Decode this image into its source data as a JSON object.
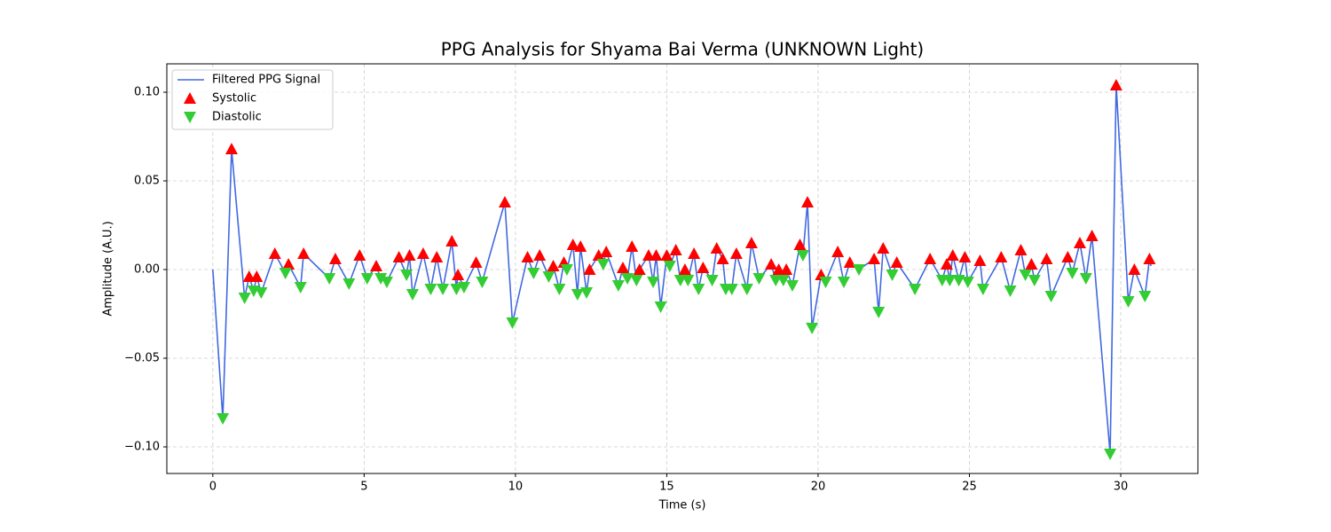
{
  "chart_data": {
    "type": "line",
    "title": "PPG Analysis for Shyama Bai Verma (UNKNOWN Light)",
    "x_label": "Time (s)",
    "y_label": "Amplitude (A.U.)",
    "xlim": [
      -1.52,
      32.55
    ],
    "ylim": [
      -0.115,
      0.116
    ],
    "xticks": [
      0,
      5,
      10,
      15,
      20,
      25,
      30
    ],
    "yticks": [
      {
        "value": -0.1,
        "label": "−0.10"
      },
      {
        "value": -0.05,
        "label": "−0.05"
      },
      {
        "value": 0,
        "label": "0.00"
      },
      {
        "value": 0.05,
        "label": "0.05"
      },
      {
        "value": 0.1,
        "label": "0.10"
      }
    ],
    "grid": true,
    "legend": "upper left",
    "series": [
      {
        "name": "Filtered PPG Signal",
        "type": "line",
        "color": "#4169e1",
        "x": [
          0,
          0.33,
          0.62,
          1.05,
          1.2,
          1.35,
          1.45,
          1.6,
          2.05,
          2.4,
          2.5,
          2.9,
          3.0,
          3.85,
          4.05,
          4.5,
          4.85,
          5.1,
          5.4,
          5.55,
          5.75,
          6.15,
          6.4,
          6.5,
          6.6,
          6.95,
          7.2,
          7.4,
          7.6,
          7.9,
          8.05,
          8.1,
          8.3,
          8.7,
          8.9,
          9.65,
          9.9,
          10.4,
          10.6,
          10.8,
          11.1,
          11.25,
          11.45,
          11.6,
          11.7,
          11.9,
          12.05,
          12.15,
          12.35,
          12.45,
          12.75,
          12.9,
          13.0,
          13.4,
          13.55,
          13.7,
          13.85,
          14.0,
          14.1,
          14.4,
          14.55,
          14.65,
          14.8,
          15.0,
          15.1,
          15.3,
          15.45,
          15.6,
          15.7,
          15.9,
          16.05,
          16.2,
          16.5,
          16.65,
          16.85,
          16.95,
          17.15,
          17.3,
          17.65,
          17.8,
          18.05,
          18.45,
          18.6,
          18.7,
          18.85,
          18.95,
          19.15,
          19.4,
          19.5,
          19.65,
          19.8,
          20.1,
          20.25,
          20.65,
          20.85,
          21.05,
          21.35,
          21.85,
          22.0,
          22.15,
          22.45,
          22.6,
          23.2,
          23.7,
          24.1,
          24.25,
          24.35,
          24.45,
          24.65,
          24.85,
          24.95,
          25.35,
          25.45,
          26.05,
          26.35,
          26.7,
          26.85,
          27.05,
          27.15,
          27.55,
          27.7,
          28.25,
          28.4,
          28.65,
          28.85,
          29.05,
          29.65,
          29.85,
          30.25,
          30.45,
          30.8,
          30.95,
          31.0
        ],
        "values": [
          0,
          -0.084,
          0.068,
          -0.016,
          -0.004,
          -0.012,
          -0.004,
          -0.013,
          0.009,
          -0.002,
          0.003,
          -0.01,
          0.009,
          -0.005,
          0.006,
          -0.008,
          0.008,
          -0.005,
          0.002,
          -0.005,
          -0.007,
          0.007,
          -0.003,
          0.008,
          -0.014,
          0.009,
          -0.011,
          0.007,
          -0.011,
          0.016,
          -0.011,
          -0.003,
          -0.01,
          0.004,
          -0.007,
          0.038,
          -0.03,
          0.007,
          -0.002,
          0.008,
          -0.004,
          0.002,
          -0.011,
          0.004,
          0,
          0.014,
          -0.014,
          0.013,
          -0.013,
          0,
          0.008,
          0.003,
          0.01,
          -0.009,
          0.001,
          -0.005,
          0.013,
          -0.006,
          0,
          0.008,
          -0.007,
          0.008,
          -0.021,
          0.008,
          0.002,
          0.011,
          -0.006,
          0,
          -0.006,
          0.009,
          -0.011,
          0.001,
          -0.006,
          0.012,
          0.006,
          -0.011,
          -0.011,
          0.009,
          -0.011,
          0.015,
          -0.005,
          0.003,
          -0.006,
          0,
          -0.006,
          0,
          -0.009,
          0.014,
          0.008,
          0.038,
          -0.033,
          -0.003,
          -0.007,
          0.01,
          -0.007,
          0.004,
          0,
          0.006,
          -0.024,
          0.012,
          -0.003,
          0.004,
          -0.011,
          0.006,
          -0.006,
          0.003,
          -0.006,
          0.008,
          -0.006,
          0.007,
          -0.007,
          0.005,
          -0.011,
          0.007,
          -0.012,
          0.011,
          -0.003,
          0.003,
          -0.006,
          0.006,
          -0.015,
          0.007,
          -0.002,
          0.015,
          -0.005,
          0.019,
          -0.104,
          0.104,
          -0.018,
          0,
          -0.015,
          0.006,
          0.002
        ]
      },
      {
        "name": "Systolic",
        "type": "scatter",
        "marker": "up",
        "color": "#ff0000",
        "x": [
          0.62,
          1.2,
          1.45,
          2.05,
          2.5,
          3.0,
          4.05,
          4.85,
          5.4,
          6.15,
          6.5,
          6.95,
          7.4,
          7.9,
          8.1,
          8.7,
          9.65,
          10.4,
          10.8,
          11.25,
          11.6,
          11.9,
          12.15,
          12.45,
          12.75,
          13.0,
          13.55,
          13.85,
          14.1,
          14.4,
          14.65,
          15.0,
          15.3,
          15.6,
          15.9,
          16.2,
          16.65,
          16.85,
          17.3,
          17.8,
          18.45,
          18.7,
          18.95,
          19.4,
          19.65,
          20.1,
          20.65,
          21.05,
          21.85,
          22.15,
          22.6,
          23.7,
          24.25,
          24.45,
          24.85,
          25.35,
          26.05,
          26.7,
          27.05,
          27.55,
          28.25,
          28.65,
          29.05,
          29.85,
          30.45,
          30.95
        ],
        "values": [
          0.068,
          -0.004,
          -0.004,
          0.009,
          0.003,
          0.009,
          0.006,
          0.008,
          0.002,
          0.007,
          0.008,
          0.009,
          0.007,
          0.016,
          -0.003,
          0.004,
          0.038,
          0.007,
          0.008,
          0.002,
          0.004,
          0.014,
          0.013,
          0,
          0.008,
          0.01,
          0.001,
          0.013,
          0,
          0.008,
          0.008,
          0.008,
          0.011,
          0,
          0.009,
          0.001,
          0.012,
          0.006,
          0.009,
          0.015,
          0.003,
          0,
          0,
          0.014,
          0.038,
          -0.003,
          0.01,
          0.004,
          0.006,
          0.012,
          0.004,
          0.006,
          0.003,
          0.008,
          0.007,
          0.005,
          0.007,
          0.011,
          0.003,
          0.006,
          0.007,
          0.015,
          0.019,
          0.104,
          0,
          0.006
        ]
      },
      {
        "name": "Diastolic",
        "type": "scatter",
        "marker": "down",
        "color": "#32cd32",
        "x": [
          0.33,
          1.05,
          1.35,
          1.6,
          2.4,
          2.9,
          3.85,
          4.5,
          5.1,
          5.55,
          5.75,
          6.4,
          6.6,
          7.2,
          7.6,
          8.05,
          8.3,
          8.9,
          9.9,
          10.6,
          11.1,
          11.45,
          11.7,
          12.05,
          12.35,
          12.9,
          13.4,
          13.7,
          14.0,
          14.55,
          14.8,
          15.1,
          15.45,
          15.7,
          16.05,
          16.5,
          16.95,
          17.15,
          17.65,
          18.05,
          18.6,
          18.85,
          19.15,
          19.5,
          19.8,
          20.25,
          20.85,
          21.35,
          22.0,
          22.45,
          23.2,
          24.1,
          24.35,
          24.65,
          24.95,
          25.45,
          26.35,
          26.85,
          27.15,
          27.7,
          28.4,
          28.85,
          29.65,
          30.25,
          30.8
        ],
        "values": [
          -0.084,
          -0.016,
          -0.012,
          -0.013,
          -0.002,
          -0.01,
          -0.005,
          -0.008,
          -0.005,
          -0.005,
          -0.007,
          -0.003,
          -0.014,
          -0.011,
          -0.011,
          -0.011,
          -0.01,
          -0.007,
          -0.03,
          -0.002,
          -0.004,
          -0.011,
          0,
          -0.014,
          -0.013,
          0.003,
          -0.009,
          -0.005,
          -0.006,
          -0.007,
          -0.021,
          0.002,
          -0.006,
          -0.006,
          -0.011,
          -0.006,
          -0.011,
          -0.011,
          -0.011,
          -0.005,
          -0.006,
          -0.006,
          -0.009,
          0.008,
          -0.033,
          -0.007,
          -0.007,
          0,
          -0.024,
          -0.003,
          -0.011,
          -0.006,
          -0.006,
          -0.006,
          -0.007,
          -0.011,
          -0.012,
          -0.003,
          -0.006,
          -0.015,
          -0.002,
          -0.005,
          -0.104,
          -0.018,
          -0.015
        ]
      }
    ]
  }
}
